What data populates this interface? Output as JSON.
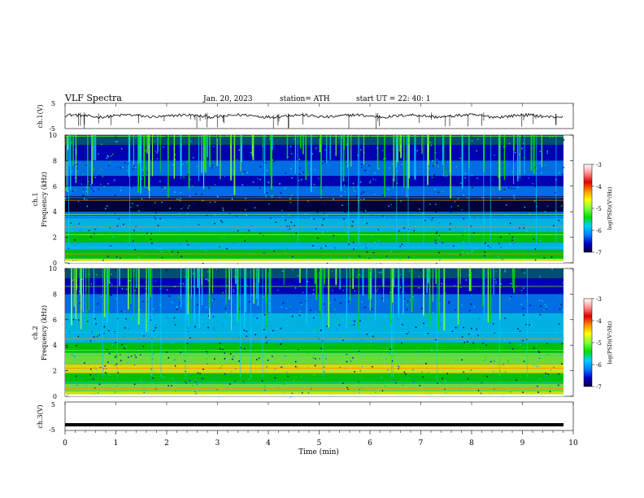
{
  "header": {
    "title": "VLF  Spectra",
    "date": "Jan. 20, 2023",
    "station": "station= ATH",
    "start": "start  UT  =   22: 40: 1"
  },
  "colorbar": {
    "label": "log(PSD)(V²/Hz)",
    "ticks": [
      "-3",
      "-4",
      "-5",
      "-6",
      "-7"
    ],
    "colors": [
      "#ffffff",
      "#ff9090",
      "#e00000",
      "#ff8c00",
      "#ffff00",
      "#80ff40",
      "#00e000",
      "#00d0ff",
      "#0080ff",
      "#0000c8",
      "#000040"
    ]
  },
  "chart_data": [
    {
      "type": "line",
      "panel": "ch1-waveform",
      "ylabel": "ch.1(V)",
      "ylim": [
        -5,
        5
      ],
      "yticklabels": [
        "5",
        "-5"
      ],
      "baseline": 0,
      "color": "#000000"
    },
    {
      "type": "heatmap",
      "panel": "ch1-spectrogram",
      "ylabel": "ch.1 Frequency (kHz)",
      "ylabel_line1": "ch.1",
      "ylabel_line2": "Frequency  (kHz)",
      "ylim": [
        0,
        10
      ],
      "yticklabels": [
        "0",
        "2",
        "4",
        "6",
        "8",
        "10"
      ],
      "xlim": [
        0,
        9.8
      ]
    },
    {
      "type": "heatmap",
      "panel": "ch2-spectrogram",
      "ylabel": "ch.2 Frequency (kHz)",
      "ylabel_line1": "ch.2",
      "ylabel_line2": "Frequency  (kHz)",
      "ylim": [
        0,
        10
      ],
      "yticklabels": [
        "0",
        "2",
        "4",
        "6",
        "8",
        "10"
      ],
      "xlim": [
        0,
        9.8
      ]
    },
    {
      "type": "line",
      "panel": "ch3-waveform",
      "ylabel": "ch.3(V)",
      "ylim": [
        -5,
        5
      ],
      "yticklabels": [
        "5",
        "-5"
      ],
      "baseline": -3,
      "color": "#000000"
    }
  ],
  "xaxis": {
    "label": "Time  (min)",
    "xlim": [
      0,
      10
    ],
    "ticks": [
      "0",
      "1",
      "2",
      "3",
      "4",
      "5",
      "6",
      "7",
      "8",
      "9",
      "10"
    ]
  }
}
